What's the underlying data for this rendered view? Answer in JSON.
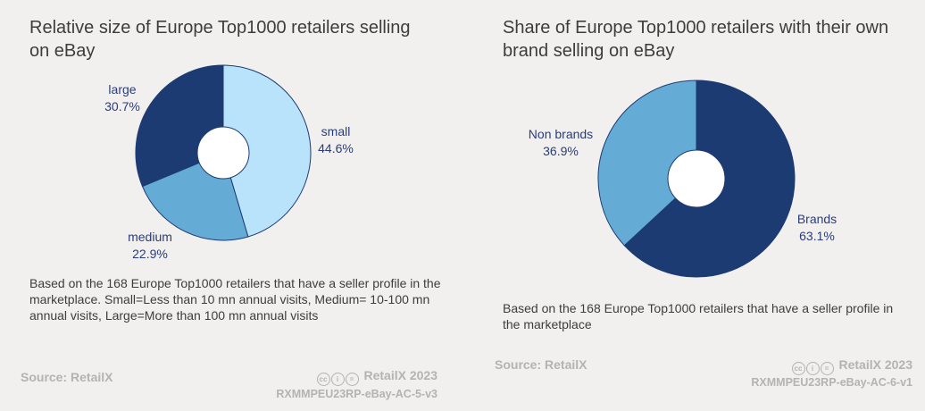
{
  "chart_data": [
    {
      "type": "pie",
      "title": "Relative size of Europe Top1000 retailers selling on eBay",
      "slices": [
        {
          "label": "small",
          "value": 44.6,
          "display": "44.6%",
          "color": "#b9e3fb"
        },
        {
          "label": "medium",
          "value": 22.9,
          "display": "22.9%",
          "color": "#64acd6"
        },
        {
          "label": "large",
          "value": 30.7,
          "display": "30.7%",
          "color": "#1c3b73"
        }
      ],
      "note": "Based on the 168 Europe Top1000 retailers that have a seller profile in the marketplace. Small=Less than 10 mn annual visits, Medium= 10-100 mn annual visits, Large=More than 100 mn annual visits",
      "source": "Source: RetailX",
      "brand": "RetailX 2023",
      "code": "RXMMPEU23RP-eBay-AC-5-v3"
    },
    {
      "type": "pie",
      "title": "Share of Europe Top1000 retailers with their own brand selling on eBay",
      "slices": [
        {
          "label": "Brands",
          "value": 63.1,
          "display": "63.1%",
          "color": "#1c3b73"
        },
        {
          "label": "Non brands",
          "value": 36.9,
          "display": "36.9%",
          "color": "#64acd6"
        }
      ],
      "note": "Based on the 168 Europe Top1000 retailers that have a seller profile in the marketplace",
      "source": "Source: RetailX",
      "brand": "RetailX 2023",
      "code": "RXMMPEU23RP-eBay-AC-6-v1"
    }
  ],
  "icons": [
    "cc-icon",
    "by-icon",
    "nd-icon"
  ]
}
